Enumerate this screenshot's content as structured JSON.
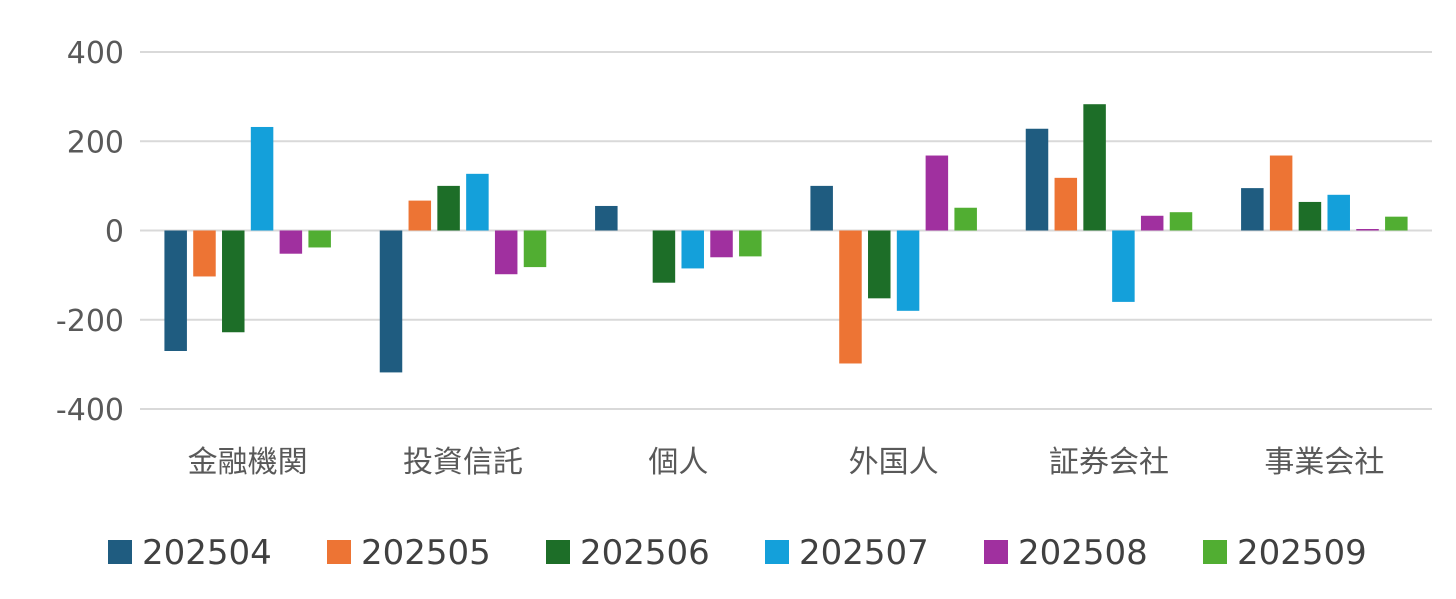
{
  "chart_data": {
    "type": "bar",
    "title": "",
    "xlabel": "",
    "ylabel": "",
    "ylim": [
      -400,
      400
    ],
    "yticks": [
      400,
      200,
      0,
      -200,
      -400
    ],
    "ytick_labels": [
      "400",
      "200",
      "0",
      "-200",
      "-400"
    ],
    "negative_tick_color": "#ff0000",
    "positive_tick_color": "#595959",
    "grid": true,
    "legend_position": "bottom",
    "categories": [
      "金融機関",
      "投資信託",
      "個人",
      "外国人",
      "証券会社",
      "事業会社"
    ],
    "series": [
      {
        "name": "202504",
        "color": "#1f5c80",
        "values": [
          -270,
          -318,
          55,
          100,
          228,
          95
        ]
      },
      {
        "name": "202505",
        "color": "#ed7434",
        "values": [
          -103,
          67,
          0,
          -298,
          118,
          168
        ]
      },
      {
        "name": "202506",
        "color": "#1d6e28",
        "values": [
          -228,
          100,
          -117,
          -152,
          283,
          64
        ]
      },
      {
        "name": "202507",
        "color": "#14a0da",
        "values": [
          232,
          127,
          -85,
          -180,
          -160,
          80
        ]
      },
      {
        "name": "202508",
        "color": "#a0309f",
        "values": [
          -52,
          -98,
          -60,
          168,
          33,
          3
        ]
      },
      {
        "name": "202509",
        "color": "#51ae32",
        "values": [
          -38,
          -82,
          -58,
          51,
          41,
          31
        ]
      }
    ]
  }
}
